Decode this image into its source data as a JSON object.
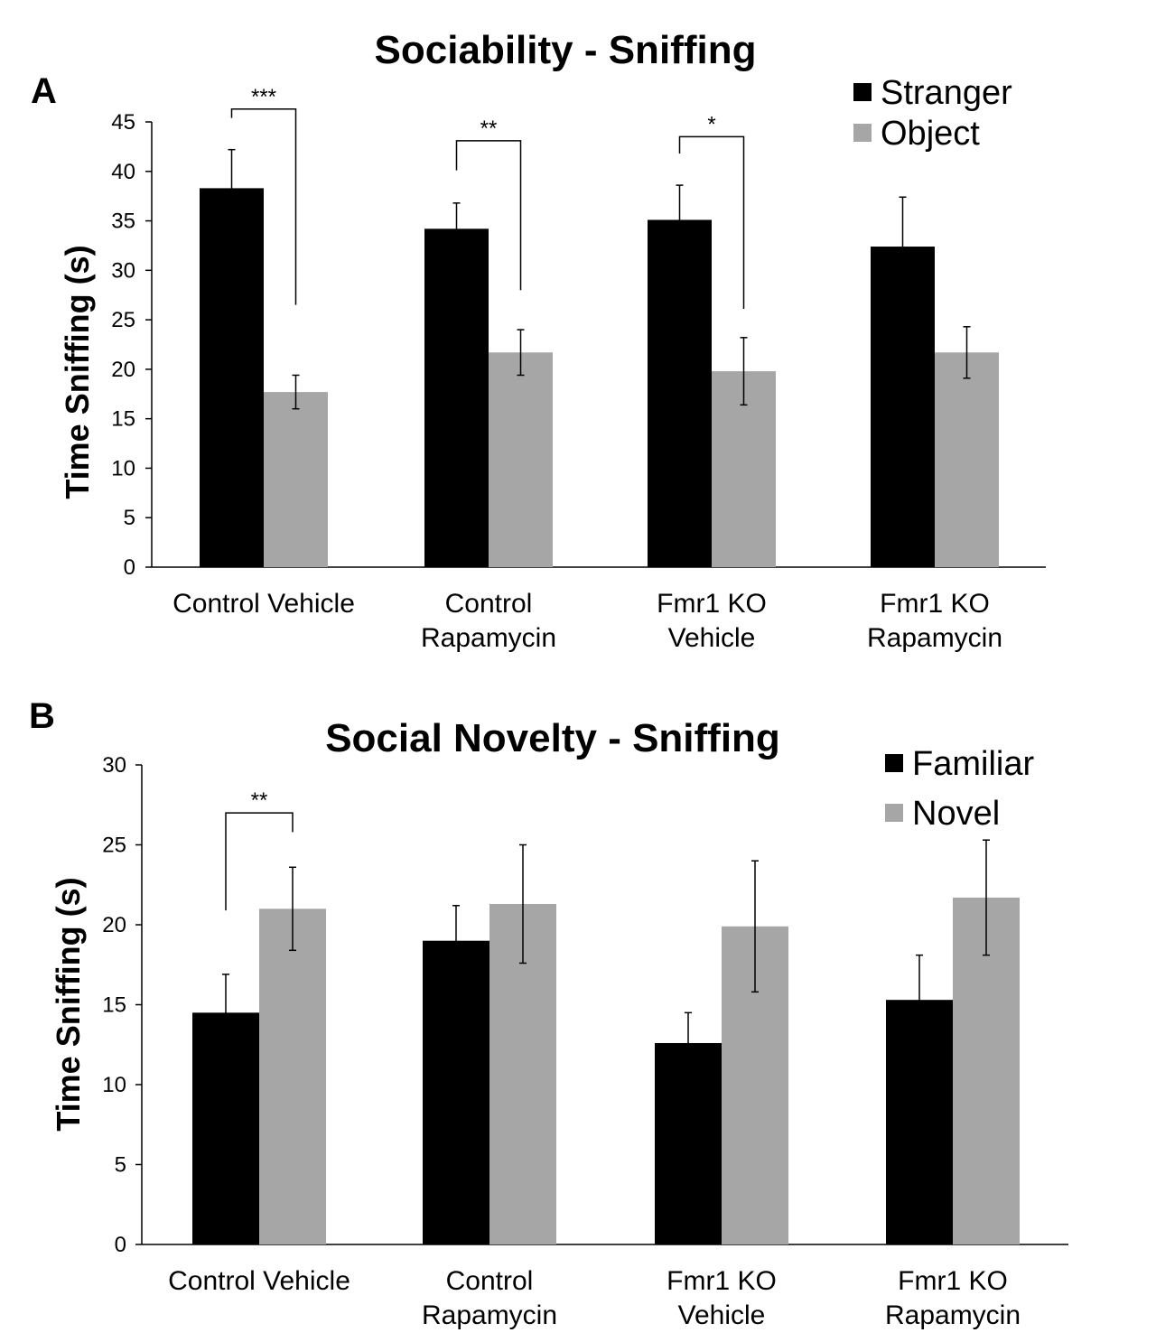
{
  "colors": {
    "dark": "#000000",
    "light": "#a6a6a6"
  },
  "chart_data": [
    {
      "type": "bar",
      "panel": "A",
      "title": "Sociability - Sniffing",
      "xlabel": "",
      "ylabel": "Time Sniffing (s)",
      "ylim": [
        0,
        45
      ],
      "yticks": [
        0,
        5,
        10,
        15,
        20,
        25,
        30,
        35,
        40,
        45
      ],
      "categories": [
        [
          "Control Vehicle"
        ],
        [
          "Control",
          "Rapamycin"
        ],
        [
          "Fmr1 KO",
          "Vehicle"
        ],
        [
          "Fmr1 KO",
          "Rapamycin"
        ]
      ],
      "series": [
        {
          "name": "Stranger",
          "color": "#000000",
          "values": [
            38.3,
            34.2,
            35.1,
            32.4
          ],
          "errors": [
            3.9,
            2.6,
            3.5,
            5.0
          ]
        },
        {
          "name": "Object",
          "color": "#a6a6a6",
          "values": [
            17.7,
            21.7,
            19.8,
            21.7
          ],
          "errors": [
            1.7,
            2.3,
            3.4,
            2.6
          ]
        }
      ],
      "significance": [
        {
          "group": 0,
          "label": "***",
          "bracket_y": 46.3,
          "left_y": 45.4,
          "right_y": 26.5
        },
        {
          "group": 1,
          "label": "**",
          "bracket_y": 43.1,
          "left_y": 40.1,
          "right_y": 28.0
        },
        {
          "group": 2,
          "label": "*",
          "bracket_y": 43.5,
          "left_y": 41.8,
          "right_y": 26.1
        }
      ],
      "legend_position": "top-right"
    },
    {
      "type": "bar",
      "panel": "B",
      "title": "Social Novelty - Sniffing",
      "xlabel": "",
      "ylabel": "Time Sniffing (s)",
      "ylim": [
        0,
        30
      ],
      "yticks": [
        0,
        5,
        10,
        15,
        20,
        25,
        30
      ],
      "categories": [
        [
          "Control Vehicle"
        ],
        [
          "Control",
          "Rapamycin"
        ],
        [
          "Fmr1 KO",
          "Vehicle"
        ],
        [
          "Fmr1 KO",
          "Rapamycin"
        ]
      ],
      "series": [
        {
          "name": "Familiar",
          "color": "#000000",
          "values": [
            14.5,
            19.0,
            12.6,
            15.3
          ],
          "errors": [
            2.4,
            2.2,
            1.9,
            2.8
          ]
        },
        {
          "name": "Novel",
          "color": "#a6a6a6",
          "values": [
            21.0,
            21.3,
            19.9,
            21.7
          ],
          "errors": [
            2.6,
            3.7,
            4.1,
            3.6
          ]
        }
      ],
      "significance": [
        {
          "group": 0,
          "label": "**",
          "bracket_y": 27.0,
          "left_y": 20.9,
          "right_y": 25.8
        }
      ],
      "legend_position": "top-right"
    }
  ]
}
